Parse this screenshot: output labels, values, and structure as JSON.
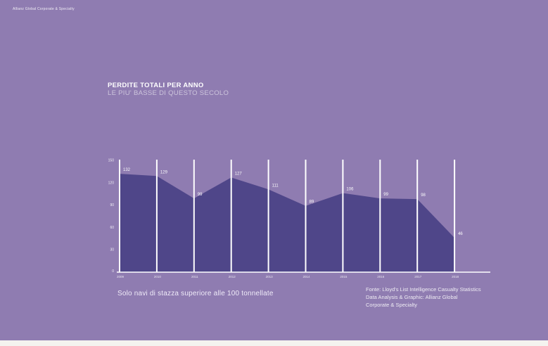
{
  "brand": "Allianz Global Corporate & Specialty",
  "header": {
    "title": "PERDITE TOTALI PER ANNO",
    "subtitle": "LE PIU' BASSE DI QUESTO SECOLO"
  },
  "footnote": "Solo navi di stazza superiore alle 100 tonnellate",
  "source": {
    "lines": [
      "Fonte: Lloyd's List Intelligence Casualty Statistics",
      "Data Analysis & Graphic: Allianz Global",
      "Corporate & Specialty"
    ]
  },
  "colors": {
    "background": "#8f7cb1",
    "area_fill": "#4f4689",
    "grid_line": "#ffffff",
    "text": "#ffffff",
    "subtitle": "rgba(255,255,255,0.55)",
    "bottom_strip": "#f4f3ef"
  },
  "chart_data": {
    "type": "area",
    "title": "PERDITE TOTALI PER ANNO",
    "subtitle": "LE PIU' BASSE DI QUESTO SECOLO",
    "categories": [
      "2009",
      "2010",
      "2011",
      "2012",
      "2013",
      "2014",
      "2015",
      "2016",
      "2017",
      "2018"
    ],
    "values": [
      132,
      129,
      99,
      127,
      111,
      89,
      106,
      99,
      98,
      46
    ],
    "xlabel": "",
    "ylabel": "",
    "ylim": [
      0,
      150
    ],
    "yticks": [
      0,
      30,
      60,
      90,
      120,
      150
    ],
    "grid": "vertical-white-lines",
    "legend": "none",
    "data_labels": true
  }
}
